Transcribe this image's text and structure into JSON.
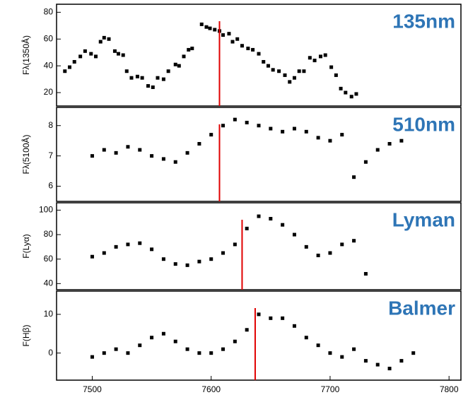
{
  "chart_data": [
    {
      "type": "scatter",
      "label": "135nm",
      "ylabel": "Fλ(1350Å)",
      "color": "#000000",
      "marker_color": "#e00000",
      "x": [
        7477,
        7481,
        7485,
        7490,
        7494,
        7499,
        7503,
        7507,
        7510,
        7514,
        7519,
        7522,
        7526,
        7529,
        7533,
        7538,
        7542,
        7547,
        7551,
        7555,
        7560,
        7564,
        7570,
        7573,
        7577,
        7581,
        7584,
        7592,
        7596,
        7599,
        7603,
        7607,
        7610,
        7615,
        7618,
        7622,
        7626,
        7631,
        7635,
        7640,
        7644,
        7648,
        7652,
        7657,
        7662,
        7666,
        7670,
        7674,
        7678,
        7683,
        7687,
        7692,
        7696,
        7701,
        7705,
        7709,
        7713,
        7718,
        7722
      ],
      "values": [
        36,
        39,
        43,
        47,
        51,
        49,
        47,
        58,
        61,
        60,
        51,
        49,
        48,
        36,
        31,
        32,
        31,
        25,
        24,
        31,
        30,
        36,
        41,
        40,
        47,
        52,
        53,
        71,
        69,
        68,
        67,
        66,
        63,
        64,
        58,
        60,
        55,
        53,
        52,
        49,
        43,
        40,
        37,
        36,
        33,
        28,
        31,
        36,
        36,
        46,
        44,
        47,
        48,
        39,
        33,
        23,
        20,
        17,
        19
      ],
      "marker_x": 7607,
      "xlim": [
        7470,
        7810
      ],
      "ylim": [
        10,
        86
      ],
      "yticks": [
        20,
        40,
        60,
        80
      ]
    },
    {
      "type": "scatter",
      "label": "510nm",
      "ylabel": "Fλ(5100Å)",
      "color": "#000000",
      "marker_color": "#e00000",
      "x": [
        7500,
        7510,
        7520,
        7530,
        7540,
        7550,
        7560,
        7570,
        7580,
        7590,
        7600,
        7610,
        7620,
        7630,
        7640,
        7650,
        7660,
        7670,
        7680,
        7690,
        7700,
        7710,
        7720,
        7730,
        7740,
        7750,
        7760
      ],
      "values": [
        7.0,
        7.2,
        7.1,
        7.3,
        7.2,
        7.0,
        6.9,
        6.8,
        7.1,
        7.4,
        7.7,
        8.0,
        8.2,
        8.1,
        8.0,
        7.9,
        7.8,
        7.9,
        7.8,
        7.6,
        7.5,
        7.7,
        6.3,
        6.8,
        7.2,
        7.4,
        7.5
      ],
      "marker_x": 7607,
      "xlim": [
        7470,
        7810
      ],
      "ylim": [
        5.5,
        8.6
      ],
      "yticks": [
        6,
        7,
        8
      ]
    },
    {
      "type": "scatter",
      "label": "Lyman",
      "ylabel": "F(Lyα)",
      "color": "#000000",
      "marker_color": "#e00000",
      "x": [
        7500,
        7510,
        7520,
        7530,
        7540,
        7550,
        7560,
        7570,
        7580,
        7590,
        7600,
        7610,
        7620,
        7630,
        7640,
        7650,
        7660,
        7670,
        7680,
        7690,
        7700,
        7710,
        7720,
        7730
      ],
      "values": [
        62,
        65,
        70,
        72,
        73,
        68,
        60,
        56,
        55,
        58,
        60,
        65,
        72,
        85,
        95,
        93,
        88,
        80,
        70,
        63,
        65,
        72,
        75,
        48
      ],
      "marker_x": 7626,
      "xlim": [
        7470,
        7810
      ],
      "ylim": [
        35,
        106
      ],
      "yticks": [
        40,
        60,
        80,
        100
      ]
    },
    {
      "type": "scatter",
      "label": "Balmer",
      "ylabel": "F(Hβ)",
      "color": "#000000",
      "marker_color": "#e00000",
      "x": [
        7500,
        7510,
        7520,
        7530,
        7540,
        7550,
        7560,
        7570,
        7580,
        7590,
        7600,
        7610,
        7620,
        7630,
        7640,
        7650,
        7660,
        7670,
        7680,
        7690,
        7700,
        7710,
        7720,
        7730,
        7740,
        7750,
        7760,
        7770
      ],
      "values": [
        -1,
        0,
        1,
        0,
        2,
        4,
        5,
        3,
        1,
        0,
        0,
        1,
        3,
        6,
        10,
        9,
        9,
        7,
        4,
        2,
        0,
        -1,
        1,
        -2,
        -3,
        -4,
        -2,
        0
      ],
      "marker_x": 7637,
      "xlim": [
        7470,
        7810
      ],
      "ylim": [
        -7,
        16
      ],
      "yticks": [
        0,
        10
      ],
      "xticks": [
        7500,
        7600,
        7700,
        7800
      ]
    }
  ]
}
